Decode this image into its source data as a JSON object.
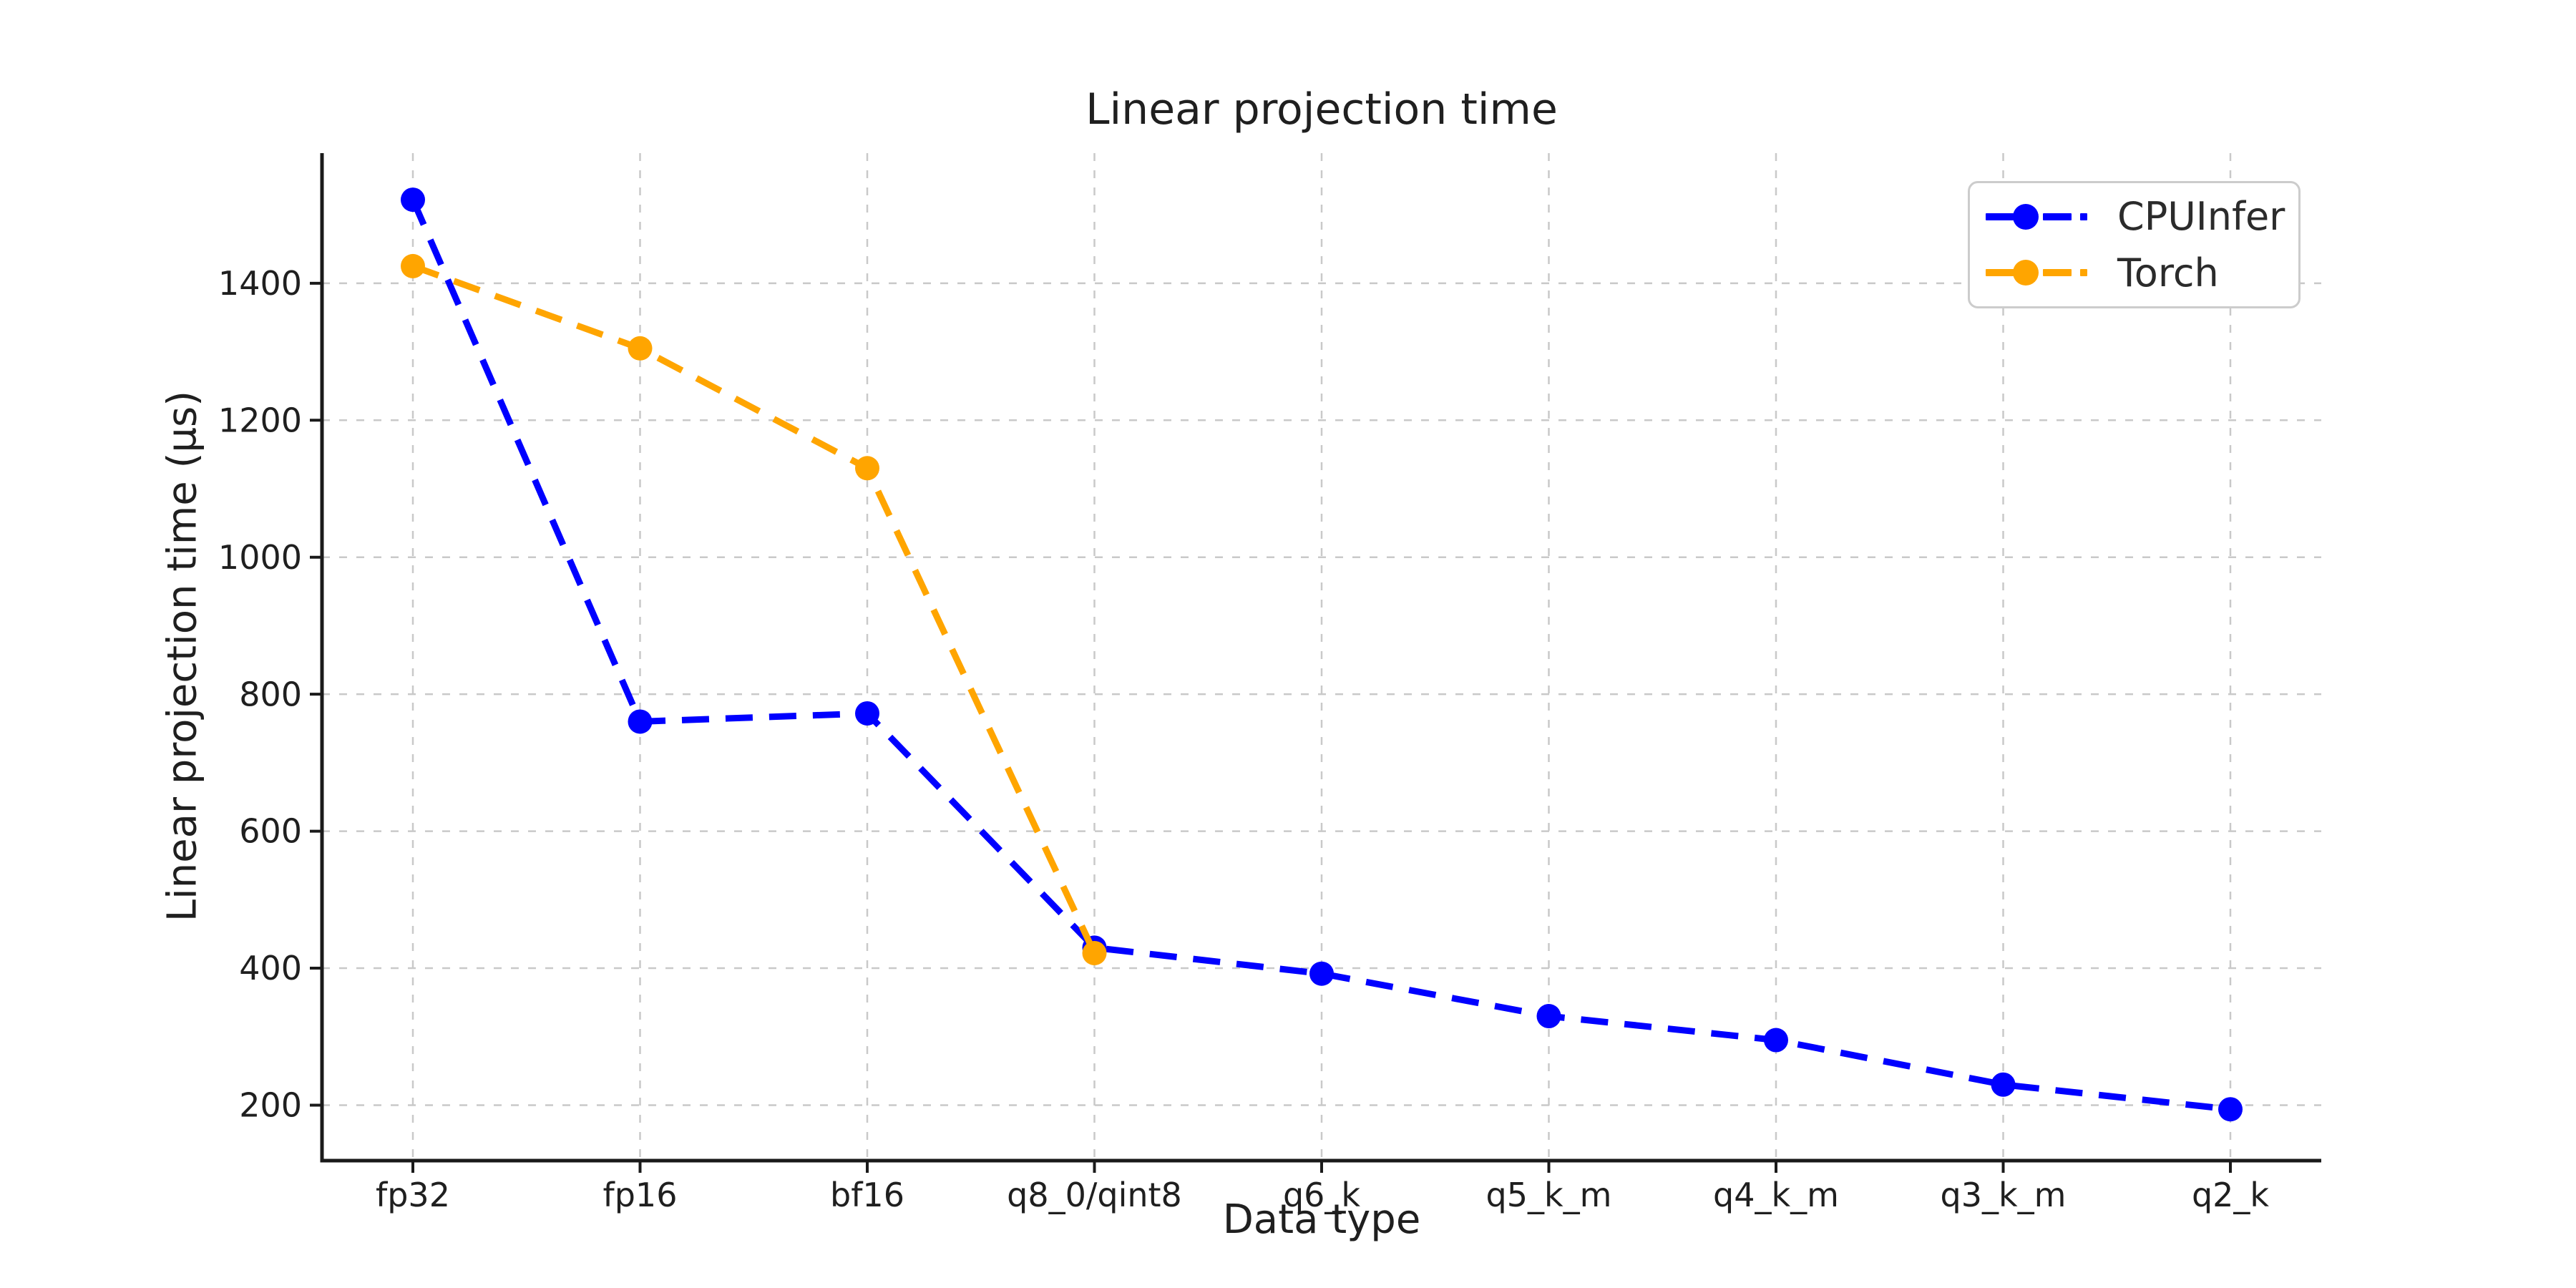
{
  "chart_data": {
    "type": "line",
    "title": "Linear projection time",
    "xlabel": "Data type",
    "ylabel": "Linear projection time (µs)",
    "categories": [
      "fp32",
      "fp16",
      "bf16",
      "q8_0/qint8",
      "q6_k",
      "q5_k_m",
      "q4_k_m",
      "q3_k_m",
      "q2_k"
    ],
    "series": [
      {
        "name": "CPUInfer",
        "color": "#0000ff",
        "values": [
          1522,
          760,
          772,
          430,
          392,
          330,
          295,
          230,
          194
        ]
      },
      {
        "name": "Torch",
        "color": "#ffa500",
        "values": [
          1425,
          1305,
          1130,
          422,
          null,
          null,
          null,
          null,
          null
        ]
      }
    ],
    "yticks": [
      200,
      400,
      600,
      800,
      1000,
      1200,
      1400
    ],
    "ylim": [
      119,
      1590
    ],
    "grid": "dashed",
    "line_style": "dashed",
    "marker": "circle",
    "legend_position": "upper right"
  },
  "colors": {
    "background": "#ffffff",
    "grid": "#c9c9c9",
    "axis": "#1a1a1a",
    "text": "#1f1f1f",
    "legend_border": "#cccccc"
  }
}
